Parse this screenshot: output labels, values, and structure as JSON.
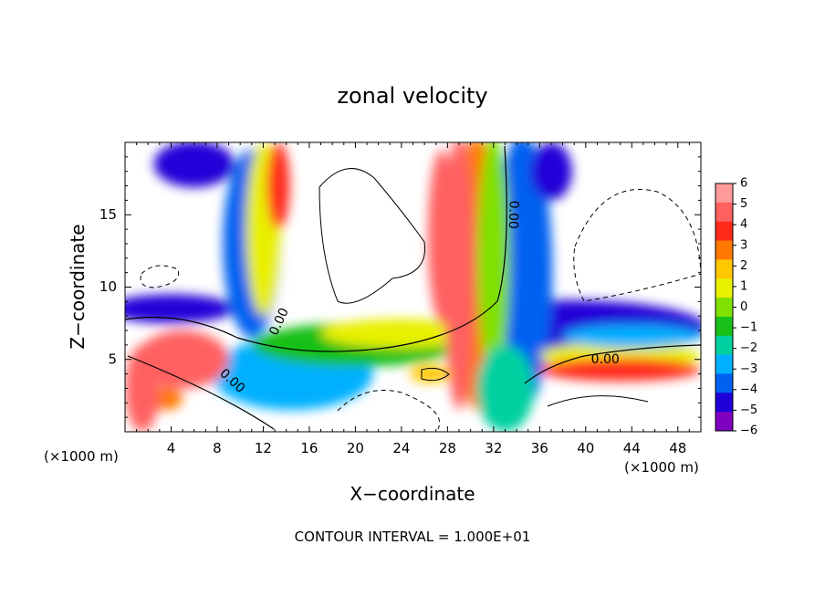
{
  "chart_data": {
    "type": "heatmap",
    "title": "zonal velocity",
    "xlabel": "X−coordinate",
    "ylabel": "Z−coordinate",
    "x_unit_left": "(×1000 m)",
    "x_unit_right": "(×1000 m)",
    "footer": "CONTOUR INTERVAL = 1.000E+01",
    "xlim": [
      0,
      50
    ],
    "ylim": [
      0,
      20
    ],
    "x_ticks": [
      4,
      8,
      12,
      16,
      20,
      24,
      28,
      32,
      36,
      40,
      44,
      48
    ],
    "y_ticks": [
      5,
      10,
      15
    ],
    "colorbar": {
      "min": -6,
      "max": 6,
      "labels": [
        "6",
        "5",
        "4",
        "3",
        "2",
        "1",
        "0",
        "−1",
        "−2",
        "−3",
        "−4",
        "−5",
        "−6"
      ],
      "colors": [
        "#ff9a9a",
        "#ff6060",
        "#ff2a1a",
        "#ff7800",
        "#ffc800",
        "#e8f000",
        "#80e000",
        "#18c018",
        "#00d0a0",
        "#00b0ff",
        "#0060f0",
        "#2000d8",
        "#8000c0"
      ]
    },
    "contour_labels": [
      {
        "text": "0.00",
        "x": 33.7,
        "y": 15.0,
        "angle": 92
      },
      {
        "text": "0.00",
        "x": 13.4,
        "y": 7.6,
        "angle": -65
      },
      {
        "text": "0.00",
        "x": 9.3,
        "y": 3.5,
        "angle": 42
      },
      {
        "text": "0.00",
        "x": 41.7,
        "y": 5.0,
        "angle": 0
      }
    ],
    "regions": [
      {
        "level": -5,
        "cx": 38.5,
        "cy": 7.2,
        "rx": 12.0,
        "ry": 1.9
      },
      {
        "level": -4,
        "cx": 34.5,
        "cy": 11.0,
        "rx": 2.6,
        "ry": 9.5
      },
      {
        "level": -5,
        "cx": 4.0,
        "cy": 8.5,
        "rx": 5.5,
        "ry": 1.0
      },
      {
        "level": -5,
        "cx": 6.0,
        "cy": 18.5,
        "rx": 3.5,
        "ry": 1.6
      },
      {
        "level": -4,
        "cx": 11.0,
        "cy": 13.0,
        "rx": 2.5,
        "ry": 6.5
      },
      {
        "level": -3,
        "cx": 14.5,
        "cy": 4.0,
        "rx": 7.0,
        "ry": 2.5
      },
      {
        "level": -1,
        "cx": 20.0,
        "cy": 6.0,
        "rx": 9.0,
        "ry": 1.5
      },
      {
        "level": 1,
        "cx": 24.0,
        "cy": 6.8,
        "rx": 7.0,
        "ry": 1.0
      },
      {
        "level": 1,
        "cx": 12.0,
        "cy": 14.0,
        "rx": 1.5,
        "ry": 6.0
      },
      {
        "level": 3,
        "cx": 30.5,
        "cy": 11.0,
        "rx": 1.8,
        "ry": 9.5
      },
      {
        "level": 5,
        "cx": 29.0,
        "cy": 11.0,
        "rx": 1.3,
        "ry": 9.5
      },
      {
        "level": 0,
        "cx": 32.0,
        "cy": 12.0,
        "rx": 1.4,
        "ry": 8.5
      },
      {
        "level": -2,
        "cx": 33.0,
        "cy": 3.0,
        "rx": 2.5,
        "ry": 3.0
      },
      {
        "level": 1,
        "cx": 43.0,
        "cy": 5.3,
        "rx": 7.0,
        "ry": 0.9
      },
      {
        "level": 4,
        "cx": 43.0,
        "cy": 4.3,
        "rx": 7.0,
        "ry": 0.8
      },
      {
        "level": 5,
        "cx": 5.0,
        "cy": 5.0,
        "rx": 4.0,
        "ry": 2.0
      },
      {
        "level": 3,
        "cx": 3.5,
        "cy": 2.3,
        "rx": 1.5,
        "ry": 0.8
      },
      {
        "level": 5,
        "cx": 1.5,
        "cy": 3.0,
        "rx": 1.5,
        "ry": 3.0
      },
      {
        "level": 2,
        "cx": 26.5,
        "cy": 4.0,
        "rx": 1.8,
        "ry": 0.6
      },
      {
        "level": 4,
        "cx": 13.3,
        "cy": 17.0,
        "rx": 1.0,
        "ry": 3.0
      },
      {
        "level": 5,
        "cx": 27.5,
        "cy": 13.5,
        "rx": 1.2,
        "ry": 6.0
      },
      {
        "level": -5,
        "cx": 37.0,
        "cy": 18.0,
        "rx": 1.8,
        "ry": 2.0
      },
      {
        "level": -3,
        "cx": 44.0,
        "cy": 6.6,
        "rx": 6.0,
        "ry": 0.8
      }
    ]
  }
}
